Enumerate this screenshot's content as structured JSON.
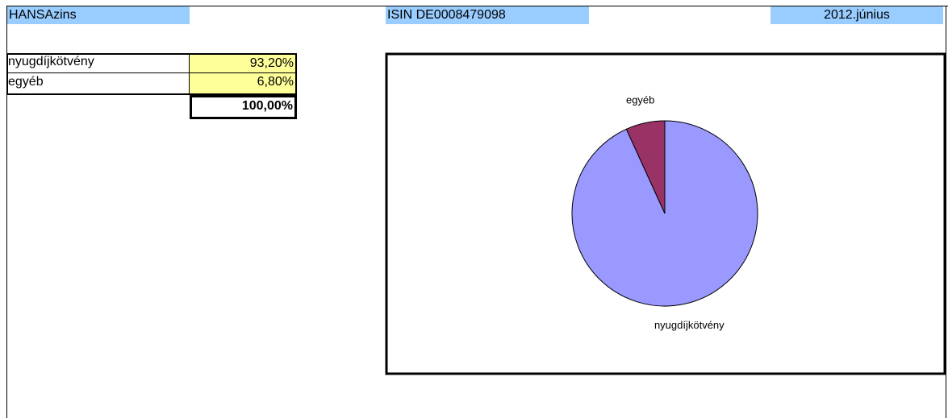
{
  "header": {
    "name": "HANSAzins",
    "isin": "ISIN DE0008479098",
    "date": "2012.június"
  },
  "table": {
    "rows": [
      [
        "nyugdíjkötvény",
        "93,20%"
      ],
      [
        "egyéb",
        "6,80%"
      ]
    ],
    "total": "100,00%"
  },
  "chart_data": {
    "type": "pie",
    "categories": [
      "nyugdíjkötvény",
      "egyéb"
    ],
    "values": [
      93.2,
      6.8
    ],
    "colors": [
      "#9999ff",
      "#993366"
    ]
  }
}
